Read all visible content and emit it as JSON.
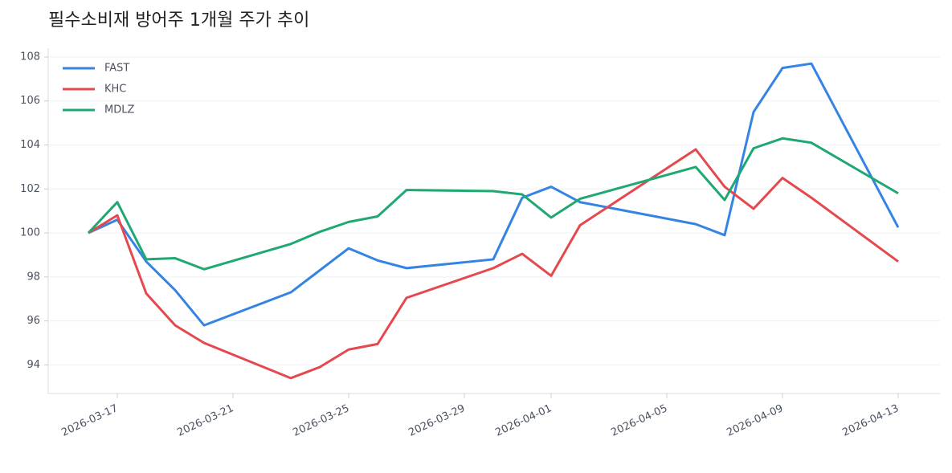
{
  "chart_data": {
    "type": "line",
    "title": "필수소비재 방어주 1개월 주가 추이",
    "x": [
      "2026-03-16",
      "2026-03-17",
      "2026-03-18",
      "2026-03-19",
      "2026-03-20",
      "2026-03-23",
      "2026-03-24",
      "2026-03-25",
      "2026-03-26",
      "2026-03-27",
      "2026-03-30",
      "2026-03-31",
      "2026-04-01",
      "2026-04-02",
      "2026-04-06",
      "2026-04-07",
      "2026-04-08",
      "2026-04-09",
      "2026-04-10",
      "2026-04-13"
    ],
    "series": [
      {
        "name": "FAST",
        "color": "#3584e4",
        "values": [
          100.0,
          100.6,
          98.7,
          97.4,
          95.8,
          97.3,
          98.3,
          99.3,
          98.75,
          98.4,
          98.8,
          101.6,
          102.1,
          101.4,
          100.4,
          99.9,
          105.5,
          107.5,
          107.7,
          100.25
        ]
      },
      {
        "name": "KHC",
        "color": "#e5484d",
        "values": [
          100.0,
          100.8,
          97.25,
          95.8,
          95.0,
          93.4,
          93.9,
          94.7,
          94.95,
          97.05,
          98.4,
          99.05,
          98.05,
          100.35,
          103.8,
          102.1,
          101.1,
          102.5,
          101.6,
          98.7
        ]
      },
      {
        "name": "MDLZ",
        "color": "#20a872",
        "values": [
          100.0,
          101.4,
          98.8,
          98.85,
          98.35,
          99.5,
          100.05,
          100.5,
          100.75,
          101.95,
          101.9,
          101.75,
          100.7,
          101.55,
          103.0,
          101.5,
          103.85,
          104.3,
          104.1,
          101.8
        ]
      }
    ],
    "xlim": [
      "2026-03-15",
      "2026-04-14"
    ],
    "xticks": [
      "2026-03-17",
      "2026-03-21",
      "2026-03-25",
      "2026-03-29",
      "2026-04-01",
      "2026-04-05",
      "2026-04-09",
      "2026-04-13"
    ],
    "ylim": [
      92.7,
      108.4
    ],
    "yticks": [
      94,
      96,
      98,
      100,
      102,
      104,
      106,
      108
    ],
    "grid": true,
    "legend": "upper-left"
  }
}
